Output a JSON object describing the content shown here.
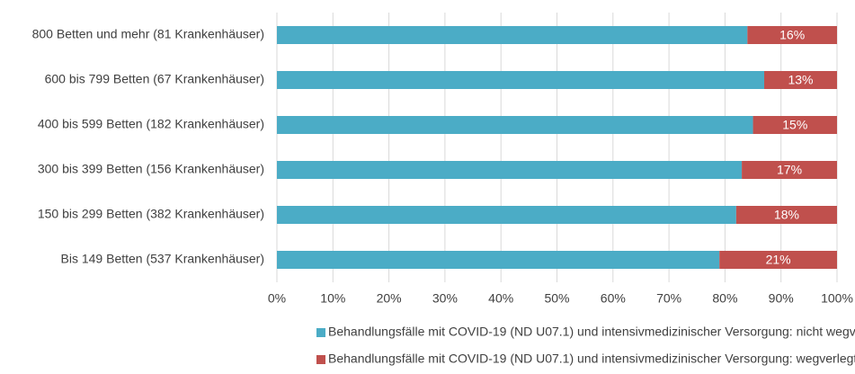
{
  "chart_data": {
    "type": "stacked_barh",
    "categories": [
      "800 Betten und mehr (81 Krankenhäuser)",
      "600 bis 799 Betten (67 Krankenhäuser)",
      "400 bis 599 Betten (182 Krankenhäuser)",
      "300 bis 399 Betten (156 Krankenhäuser)",
      "150 bis 299 Betten (382 Krankenhäuser)",
      "Bis 149 Betten (537 Krankenhäuser)"
    ],
    "series": [
      {
        "name": "Behandlungsfälle mit COVID-19 (ND U07.1) und intensivmedizinischer Versorgung: nicht wegverlegt in anderes Krankenhaus",
        "color": "#4bacc6",
        "values": [
          84,
          87,
          85,
          83,
          82,
          79
        ]
      },
      {
        "name": "Behandlungsfälle mit COVID-19 (ND U07.1) und intensivmedizinischer Versorgung: wegverlegt in anderes Krankenhaus",
        "color": "#c0504d",
        "values": [
          16,
          13,
          15,
          17,
          18,
          21
        ],
        "value_labels": [
          "16%",
          "13%",
          "15%",
          "17%",
          "18%",
          "21%"
        ]
      }
    ],
    "xlim": [
      0,
      100
    ],
    "xticks": [
      {
        "value": 0,
        "label": "0%"
      },
      {
        "value": 10,
        "label": "10%"
      },
      {
        "value": 20,
        "label": "20%"
      },
      {
        "value": 30,
        "label": "30%"
      },
      {
        "value": 40,
        "label": "40%"
      },
      {
        "value": 50,
        "label": "50%"
      },
      {
        "value": 60,
        "label": "60%"
      },
      {
        "value": 70,
        "label": "70%"
      },
      {
        "value": 80,
        "label": "80%"
      },
      {
        "value": 90,
        "label": "90%"
      },
      {
        "value": 100,
        "label": "100%"
      }
    ],
    "grid": true
  }
}
